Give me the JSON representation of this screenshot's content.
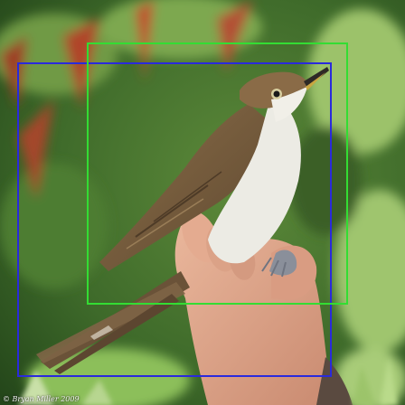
{
  "photo": {
    "subject": "bird-held-in-hand",
    "credit": "© Bryan Miller 2009"
  },
  "annotations": {
    "boxes": [
      {
        "label": "",
        "color": "#2a2adc"
      },
      {
        "label": "",
        "color": "#33dd33"
      }
    ]
  },
  "colors": {
    "foliage_dark": "#2f5a22",
    "foliage_light": "#8cbf5a",
    "red_leaves": "#b0442a",
    "bird_back": "#7a5e3c",
    "bird_belly": "#ecebe4",
    "skin": "#e1a58a"
  }
}
